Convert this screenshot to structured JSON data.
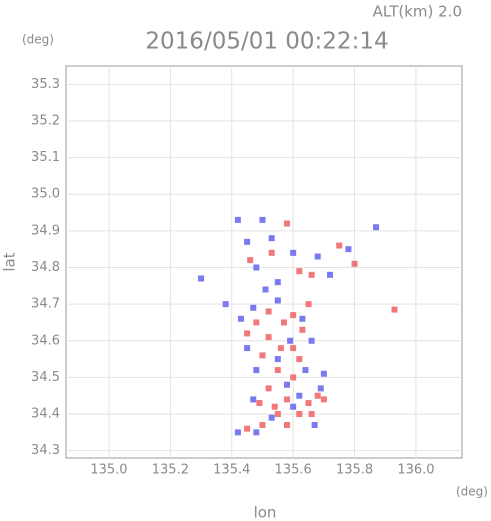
{
  "chart_data": {
    "type": "scatter",
    "title": "2016/05/01 00:22:14",
    "subtitle": "ALT(km) 2.0",
    "y_unit": "(deg)",
    "x_unit": "(deg)",
    "y_label": "lat",
    "x_label": "lon",
    "xlim": [
      134.86,
      136.15
    ],
    "ylim": [
      34.28,
      35.35
    ],
    "xticks": [
      {
        "value": 135.0,
        "label": "135.0"
      },
      135.2,
      135.4,
      135.6,
      135.8,
      {
        "value": 136.0,
        "label": "136.0"
      }
    ],
    "yticks": [
      34.3,
      34.4,
      34.5,
      34.6,
      34.7,
      34.8,
      34.9,
      {
        "value": 35.0,
        "label": "35.0"
      },
      35.1,
      35.2,
      35.3
    ],
    "grid": true,
    "series": [
      {
        "color": "#f07878",
        "x": [
          135.93,
          135.58,
          135.62,
          135.66,
          135.75,
          135.52,
          135.5,
          135.55,
          135.6,
          135.57,
          135.63,
          135.48,
          135.52,
          135.58,
          135.65,
          135.68,
          135.62,
          135.55,
          135.5,
          135.45,
          135.6,
          135.54,
          135.66,
          135.45,
          135.56,
          135.62,
          135.7,
          135.49,
          135.58,
          135.52,
          135.6,
          135.65,
          135.8,
          135.46,
          135.53
        ],
        "y": [
          34.685,
          34.92,
          34.79,
          34.78,
          34.86,
          34.61,
          34.56,
          34.52,
          34.58,
          34.65,
          34.63,
          34.65,
          34.47,
          34.44,
          34.43,
          34.45,
          34.4,
          34.4,
          34.37,
          34.36,
          34.5,
          34.42,
          34.4,
          34.62,
          34.58,
          34.55,
          34.44,
          34.43,
          34.37,
          34.68,
          34.67,
          34.7,
          34.81,
          34.82,
          34.84
        ]
      },
      {
        "color": "#7a7af0",
        "x": [
          135.5,
          135.45,
          135.53,
          135.48,
          135.55,
          135.6,
          135.68,
          135.72,
          135.78,
          135.87,
          135.3,
          135.38,
          135.43,
          135.47,
          135.55,
          135.63,
          135.66,
          135.45,
          135.48,
          135.55,
          135.64,
          135.58,
          135.69,
          135.47,
          135.53,
          135.6,
          135.67,
          135.42,
          135.48,
          135.62,
          135.7,
          135.59,
          135.51,
          135.42
        ],
        "y": [
          34.93,
          34.87,
          34.88,
          34.8,
          34.76,
          34.84,
          34.83,
          34.78,
          34.85,
          34.91,
          34.77,
          34.7,
          34.66,
          34.69,
          34.71,
          34.66,
          34.6,
          34.58,
          34.52,
          34.55,
          34.52,
          34.48,
          34.47,
          34.44,
          34.39,
          34.42,
          34.37,
          34.35,
          34.35,
          34.45,
          34.51,
          34.6,
          34.74,
          34.93
        ]
      }
    ]
  }
}
